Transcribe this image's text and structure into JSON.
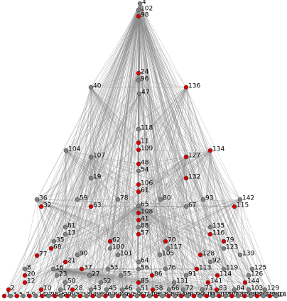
{
  "graph": {
    "nodes": [
      {
        "label": "4",
        "color": "#808080"
      },
      {
        "label": "102",
        "color": "#808080"
      },
      {
        "label": "98",
        "color": "#d40000"
      },
      {
        "label": "24",
        "color": "#d40000"
      },
      {
        "label": "96",
        "color": "#808080"
      },
      {
        "label": "40",
        "color": "#808080"
      },
      {
        "label": "136",
        "color": "#d40000"
      },
      {
        "label": "47",
        "color": "#808080"
      },
      {
        "label": "118",
        "color": "#808080"
      },
      {
        "label": "11",
        "color": "#d40000"
      },
      {
        "label": "109",
        "color": "#d40000"
      },
      {
        "label": "104",
        "color": "#808080"
      },
      {
        "label": "134",
        "color": "#d40000"
      },
      {
        "label": "107",
        "color": "#808080"
      },
      {
        "label": "127",
        "color": "#d40000"
      },
      {
        "label": "48",
        "color": "#d40000"
      },
      {
        "label": "54",
        "color": "#808080"
      },
      {
        "label": "19",
        "color": "#808080"
      },
      {
        "label": "132",
        "color": "#d40000"
      },
      {
        "label": "106",
        "color": "#d40000"
      },
      {
        "label": "61",
        "color": "#d40000"
      },
      {
        "label": "36",
        "color": "#808080"
      },
      {
        "label": "59",
        "color": "#808080"
      },
      {
        "label": "78",
        "color": "#808080"
      },
      {
        "label": "80",
        "color": "#808080"
      },
      {
        "label": "93",
        "color": "#808080"
      },
      {
        "label": "142",
        "color": "#808080"
      },
      {
        "label": "32",
        "color": "#d40000"
      },
      {
        "label": "63",
        "color": "#d40000"
      },
      {
        "label": "65",
        "color": "#808080"
      },
      {
        "label": "67",
        "color": "#808080"
      },
      {
        "label": "115",
        "color": "#d40000"
      },
      {
        "label": "108",
        "color": "#d40000"
      },
      {
        "label": "41",
        "color": "#d40000"
      },
      {
        "label": "88",
        "color": "#808080"
      },
      {
        "label": "81",
        "color": "#808080"
      },
      {
        "label": "135",
        "color": "#808080"
      },
      {
        "label": "13",
        "color": "#808080"
      },
      {
        "label": "57",
        "color": "#d40000"
      },
      {
        "label": "116",
        "color": "#d40000"
      },
      {
        "label": "35",
        "color": "#808080"
      },
      {
        "label": "62",
        "color": "#d40000"
      },
      {
        "label": "70",
        "color": "#d40000"
      },
      {
        "label": "79",
        "color": "#d40000"
      },
      {
        "label": "68",
        "color": "#d40000"
      },
      {
        "label": "100",
        "color": "#808080"
      },
      {
        "label": "117",
        "color": "#808080"
      },
      {
        "label": "123",
        "color": "#808080"
      },
      {
        "label": "77",
        "color": "#d40000"
      },
      {
        "label": "90",
        "color": "#808080"
      },
      {
        "label": "101",
        "color": "#808080"
      },
      {
        "label": "105",
        "color": "#808080"
      },
      {
        "label": "128",
        "color": "#d40000"
      },
      {
        "label": "139",
        "color": "#808080"
      },
      {
        "label": "21",
        "color": "#d40000"
      },
      {
        "label": "64",
        "color": "#808080"
      },
      {
        "label": "92",
        "color": "#808080"
      },
      {
        "label": "8",
        "color": "#808080"
      },
      {
        "label": "16",
        "color": "#808080"
      },
      {
        "label": "37",
        "color": "#d40000"
      },
      {
        "label": "53",
        "color": "#808080"
      },
      {
        "label": "56",
        "color": "#808080"
      },
      {
        "label": "76",
        "color": "#808080"
      },
      {
        "label": "113",
        "color": "#d40000"
      },
      {
        "label": "119",
        "color": "#808080"
      },
      {
        "label": "125",
        "color": "#808080"
      },
      {
        "label": "20",
        "color": "#d40000"
      },
      {
        "label": "23",
        "color": "#808080"
      },
      {
        "label": "27",
        "color": "#808080"
      },
      {
        "label": "55",
        "color": "#808080"
      },
      {
        "label": "86",
        "color": "#d40000"
      },
      {
        "label": "91",
        "color": "#808080"
      },
      {
        "label": "114",
        "color": "#d40000"
      },
      {
        "label": "126",
        "color": "#808080"
      },
      {
        "label": "12",
        "color": "#d40000"
      },
      {
        "label": "50",
        "color": "#808080"
      },
      {
        "label": "52",
        "color": "#808080"
      },
      {
        "label": "85",
        "color": "#d40000"
      },
      {
        "label": "131",
        "color": "#808080"
      },
      {
        "label": "141",
        "color": "#d40000"
      },
      {
        "label": "144",
        "color": "#d40000"
      },
      {
        "label": "2",
        "color": "#d40000"
      },
      {
        "label": "10",
        "color": "#d40000"
      },
      {
        "label": "17",
        "color": "#808080"
      },
      {
        "label": "28",
        "color": "#d40000"
      },
      {
        "label": "43",
        "color": "#808080"
      },
      {
        "label": "45",
        "color": "#808080"
      },
      {
        "label": "46",
        "color": "#808080"
      },
      {
        "label": "51",
        "color": "#808080"
      },
      {
        "label": "58",
        "color": "#d40000"
      },
      {
        "label": "66",
        "color": "#808080"
      },
      {
        "label": "72",
        "color": "#808080"
      },
      {
        "label": "73",
        "color": "#808080"
      },
      {
        "label": "83",
        "color": "#d40000"
      },
      {
        "label": "84",
        "color": "#808080"
      },
      {
        "label": "103",
        "color": "#808080"
      },
      {
        "label": "129",
        "color": "#808080"
      },
      {
        "label": "1",
        "color": "#d40000"
      },
      {
        "label": "3",
        "color": "#808080"
      },
      {
        "label": "5",
        "color": "#d40000"
      },
      {
        "label": "7",
        "color": "#808080"
      },
      {
        "label": "9",
        "color": "#d40000"
      },
      {
        "label": "14",
        "color": "#808080"
      },
      {
        "label": "22",
        "color": "#d40000"
      },
      {
        "label": "25",
        "color": "#808080"
      },
      {
        "label": "26",
        "color": "#d40000"
      },
      {
        "label": "29",
        "color": "#808080"
      },
      {
        "label": "30",
        "color": "#d40000"
      },
      {
        "label": "31",
        "color": "#808080"
      },
      {
        "label": "33",
        "color": "#d40000"
      },
      {
        "label": "34",
        "color": "#808080"
      },
      {
        "label": "38",
        "color": "#d40000"
      },
      {
        "label": "39",
        "color": "#808080"
      },
      {
        "label": "42",
        "color": "#d40000"
      },
      {
        "label": "44",
        "color": "#808080"
      },
      {
        "label": "49",
        "color": "#d40000"
      },
      {
        "label": "60",
        "color": "#808080"
      },
      {
        "label": "69",
        "color": "#d40000"
      },
      {
        "label": "71",
        "color": "#808080"
      },
      {
        "label": "74",
        "color": "#d40000"
      },
      {
        "label": "75",
        "color": "#808080"
      },
      {
        "label": "82",
        "color": "#d40000"
      },
      {
        "label": "87",
        "color": "#808080"
      },
      {
        "label": "89",
        "color": "#d40000"
      },
      {
        "label": "94",
        "color": "#808080"
      },
      {
        "label": "95",
        "color": "#d40000"
      },
      {
        "label": "97",
        "color": "#808080"
      },
      {
        "label": "99",
        "color": "#d40000"
      },
      {
        "label": "110",
        "color": "#808080"
      },
      {
        "label": "111",
        "color": "#d40000"
      },
      {
        "label": "112",
        "color": "#808080"
      },
      {
        "label": "120",
        "color": "#d40000"
      },
      {
        "label": "121",
        "color": "#808080"
      },
      {
        "label": "122",
        "color": "#d40000"
      },
      {
        "label": "124",
        "color": "#808080"
      },
      {
        "label": "130",
        "color": "#d40000"
      },
      {
        "label": "133",
        "color": "#808080"
      },
      {
        "label": "137",
        "color": "#d40000"
      },
      {
        "label": "138",
        "color": "#808080"
      },
      {
        "label": "140",
        "color": "#d40000"
      },
      {
        "label": "143",
        "color": "#808080"
      }
    ]
  }
}
